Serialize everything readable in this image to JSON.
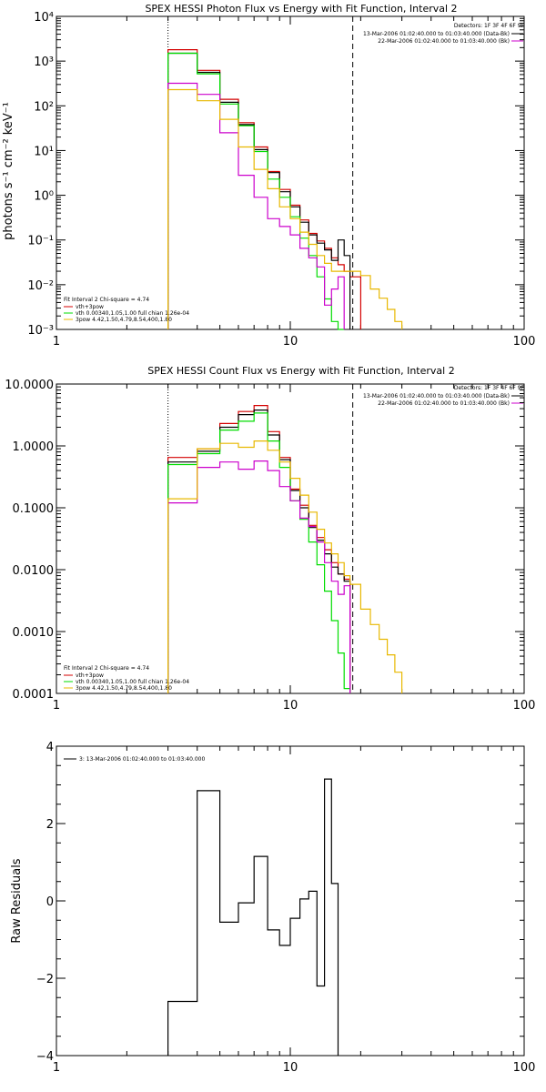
{
  "colors": {
    "red": "#d40000",
    "green": "#00dd00",
    "black": "#000000",
    "magenta": "#cc00cc",
    "orange": "#e8b800",
    "background": "#ffffff"
  },
  "chart_data": [
    {
      "type": "line",
      "title": "SPEX HESSI Photon Flux vs Energy with Fit Function, Interval 2",
      "xlabel": "",
      "ylabel": "photons s⁻¹ cm⁻² keV⁻¹",
      "x_scale": "log",
      "y_scale": "log",
      "xlim": [
        1,
        100
      ],
      "ylim": [
        0.001,
        10000
      ],
      "xticks": [
        {
          "v": 1,
          "label": "1"
        },
        {
          "v": 10,
          "label": "10"
        },
        {
          "v": 100,
          "label": "100"
        }
      ],
      "yticks": [
        {
          "v": 0.001,
          "label": "10⁻³"
        },
        {
          "v": 0.01,
          "label": "10⁻²"
        },
        {
          "v": 0.1,
          "label": "10⁻¹"
        },
        {
          "v": 1,
          "label": "10⁰"
        },
        {
          "v": 10,
          "label": "10¹"
        },
        {
          "v": 100,
          "label": "10²"
        },
        {
          "v": 1000,
          "label": "10³"
        },
        {
          "v": 10000,
          "label": "10⁴"
        }
      ],
      "vlines": [
        {
          "x": 3,
          "style": "dotted"
        },
        {
          "x": 18.5,
          "style": "dashed"
        }
      ],
      "detector_text": "Detectors: 1F 3F 4F 6F 9F",
      "legend_right": [
        {
          "label": "13-Mar-2006 01:02:40.000 to 01:03:40.000 (Data-Bk)",
          "color": "black"
        },
        {
          "label": "22-Mar-2006 01:02:40.000 to 01:03:40.000 (Bk)",
          "color": "magenta"
        }
      ],
      "legend_left_title": "Fit Interval 2   Chi-square = 4.74",
      "legend_left": [
        {
          "label": "vth+3pow",
          "color": "red"
        },
        {
          "label": "vth 0.00340,1.05,1.00  full chian 1.26e-04",
          "color": "green"
        },
        {
          "label": "3pow 4.42,1.50,4.79,8.54,400,1.80",
          "color": "orange"
        }
      ],
      "edges": [
        3,
        4,
        5,
        6,
        7,
        8,
        9,
        10,
        11,
        12,
        13,
        14,
        15,
        16,
        17,
        18,
        20,
        22,
        24,
        26,
        28,
        30
      ],
      "series": [
        {
          "color": "red",
          "values": [
            1800,
            620,
            140,
            42,
            12,
            3.4,
            1.35,
            0.6,
            0.28,
            0.14,
            0.095,
            0.065,
            0.04,
            0.028,
            0.02,
            0.015
          ]
        },
        {
          "color": "black",
          "values": [
            1500,
            560,
            120,
            38,
            10.5,
            3.2,
            1.2,
            0.55,
            0.25,
            0.13,
            0.085,
            0.06,
            0.035,
            0.1,
            0.045
          ]
        },
        {
          "color": "green",
          "values": [
            1500,
            520,
            110,
            36,
            9.5,
            2.3,
            0.9,
            0.33,
            0.11,
            0.045,
            0.015,
            0.0048,
            0.0015,
            0.0008
          ]
        },
        {
          "color": "magenta",
          "values": [
            320,
            180,
            25,
            2.8,
            0.9,
            0.3,
            0.2,
            0.13,
            0.065,
            0.04,
            0.025,
            0.0035,
            0.008,
            0.015
          ]
        },
        {
          "color": "orange",
          "values": [
            230,
            130,
            50,
            12,
            3.8,
            1.4,
            0.55,
            0.3,
            0.15,
            0.08,
            0.045,
            0.03,
            0.02,
            0.02,
            0.02,
            0.02,
            0.016,
            0.008,
            0.005,
            0.0028,
            0.0015
          ]
        }
      ]
    },
    {
      "type": "line",
      "title": "SPEX HESSI Count Flux vs Energy with Fit Function, Interval 2",
      "xlabel": "",
      "ylabel": "",
      "x_scale": "log",
      "y_scale": "log",
      "xlim": [
        1,
        100
      ],
      "ylim": [
        0.0001,
        10
      ],
      "xticks": [
        {
          "v": 1,
          "label": "1"
        },
        {
          "v": 10,
          "label": "10"
        },
        {
          "v": 100,
          "label": "100"
        }
      ],
      "yticks": [
        {
          "v": 0.0001,
          "label": "0.0001"
        },
        {
          "v": 0.001,
          "label": "0.0010"
        },
        {
          "v": 0.01,
          "label": "0.0100"
        },
        {
          "v": 0.1,
          "label": "0.1000"
        },
        {
          "v": 1,
          "label": "1.0000"
        },
        {
          "v": 10,
          "label": "10.0000"
        }
      ],
      "vlines": [
        {
          "x": 3,
          "style": "dotted"
        },
        {
          "x": 18.5,
          "style": "dashed"
        }
      ],
      "detector_text": "Detectors: 1F 3F 4F 6F 9F",
      "legend_right": [
        {
          "label": "13-Mar-2006 01:02:40.000 to 01:03:40.000 (Data-Bk)",
          "color": "black"
        },
        {
          "label": "22-Mar-2006 01:02:40.000 to 01:03:40.000 (Bk)",
          "color": "magenta"
        }
      ],
      "legend_left_title": "Fit Interval 2   Chi-square = 4.74",
      "legend_left": [
        {
          "label": "vth+3pow",
          "color": "red"
        },
        {
          "label": "vth 0.00340,1.05,1.00  full chian 1.26e-04",
          "color": "green"
        },
        {
          "label": "3pow 4.42,1.50,4.79,8.54,400,1.80",
          "color": "orange"
        }
      ],
      "edges": [
        3,
        4,
        5,
        6,
        7,
        8,
        9,
        10,
        11,
        12,
        13,
        14,
        15,
        16,
        17,
        18,
        20,
        22,
        24,
        26,
        28,
        30
      ],
      "series": [
        {
          "color": "red",
          "values": [
            0.65,
            0.9,
            2.3,
            3.6,
            4.5,
            1.7,
            0.65,
            0.2,
            0.11,
            0.052,
            0.033,
            0.021,
            0.013,
            0.0085,
            0.007
          ]
        },
        {
          "color": "black",
          "values": [
            0.55,
            0.82,
            2.0,
            3.2,
            3.8,
            1.5,
            0.6,
            0.19,
            0.1,
            0.048,
            0.03,
            0.018,
            0.011,
            0.0085,
            0.0065
          ]
        },
        {
          "color": "green",
          "values": [
            0.5,
            0.75,
            1.8,
            2.5,
            3.4,
            1.2,
            0.45,
            0.13,
            0.065,
            0.028,
            0.012,
            0.0045,
            0.0015,
            0.00045,
            0.00012
          ]
        },
        {
          "color": "magenta",
          "values": [
            0.12,
            0.45,
            0.55,
            0.42,
            0.57,
            0.4,
            0.22,
            0.13,
            0.068,
            0.05,
            0.028,
            0.013,
            0.0065,
            0.004,
            0.0055
          ]
        },
        {
          "color": "orange",
          "values": [
            0.14,
            0.9,
            1.1,
            0.95,
            1.2,
            0.85,
            0.55,
            0.3,
            0.16,
            0.085,
            0.045,
            0.027,
            0.018,
            0.013,
            0.008,
            0.0058,
            0.0023,
            0.0013,
            0.00075,
            0.00042,
            0.00022
          ]
        }
      ]
    },
    {
      "type": "line",
      "title": "",
      "xlabel": "",
      "ylabel": "Raw Residuals",
      "x_scale": "log",
      "y_scale": "linear",
      "xlim": [
        1,
        100
      ],
      "ylim": [
        -4,
        4
      ],
      "xticks": [
        {
          "v": 1,
          "label": "1"
        },
        {
          "v": 10,
          "label": "10"
        },
        {
          "v": 100,
          "label": "100"
        }
      ],
      "yticks": [
        {
          "v": -4,
          "label": "−4"
        },
        {
          "v": -2,
          "label": "−2"
        },
        {
          "v": 0,
          "label": "0"
        },
        {
          "v": 2,
          "label": "2"
        },
        {
          "v": 4,
          "label": "4"
        }
      ],
      "legend_left_title": "",
      "legend_left": [
        {
          "label": "3: 13-Mar-2006 01:02:40.000 to 01:03:40.000",
          "color": "black"
        }
      ],
      "edges": [
        3,
        4,
        5,
        6,
        7,
        8,
        9,
        10,
        11,
        12,
        13,
        14,
        15,
        16,
        17,
        18
      ],
      "series": [
        {
          "color": "black",
          "values": [
            -2.6,
            2.85,
            -0.55,
            -0.05,
            1.15,
            -0.75,
            -1.15,
            -0.45,
            0.05,
            0.25,
            -2.2,
            3.15,
            0.45
          ]
        }
      ]
    }
  ]
}
